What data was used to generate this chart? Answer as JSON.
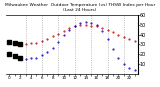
{
  "title": "Milwaukee Weather  Outdoor Temperature (vs) THSW Index per Hour (Last 24 Hours)",
  "hours": [
    0,
    1,
    2,
    3,
    4,
    5,
    6,
    7,
    8,
    9,
    10,
    11,
    12,
    13,
    14,
    15,
    16,
    17,
    18,
    19,
    20,
    21,
    22,
    23
  ],
  "temp": [
    32,
    31,
    30,
    30,
    31,
    31,
    33,
    35,
    38,
    41,
    44,
    47,
    49,
    50,
    50,
    49,
    49,
    47,
    45,
    43,
    40,
    37,
    35,
    33
  ],
  "thsw": [
    20,
    18,
    16,
    15,
    16,
    16,
    19,
    22,
    26,
    32,
    39,
    45,
    49,
    52,
    53,
    52,
    50,
    44,
    35,
    25,
    16,
    10,
    6,
    4
  ],
  "temp_color": "#cc0000",
  "thsw_color": "#0000cc",
  "dot_color": "#000000",
  "bg_color": "#ffffff",
  "grid_color": "#999999",
  "ylim": [
    0,
    60
  ],
  "ytick_vals": [
    10,
    20,
    30,
    40,
    50,
    60
  ],
  "ytick_labels": [
    "10",
    "20",
    "30",
    "40",
    "50",
    "60"
  ],
  "vgrid_hours": [
    3,
    6,
    9,
    12,
    15,
    18,
    21
  ],
  "marker_size": 1.0,
  "black_marker_size": 2.5,
  "title_fontsize": 3.2,
  "tick_fontsize": 3.5
}
